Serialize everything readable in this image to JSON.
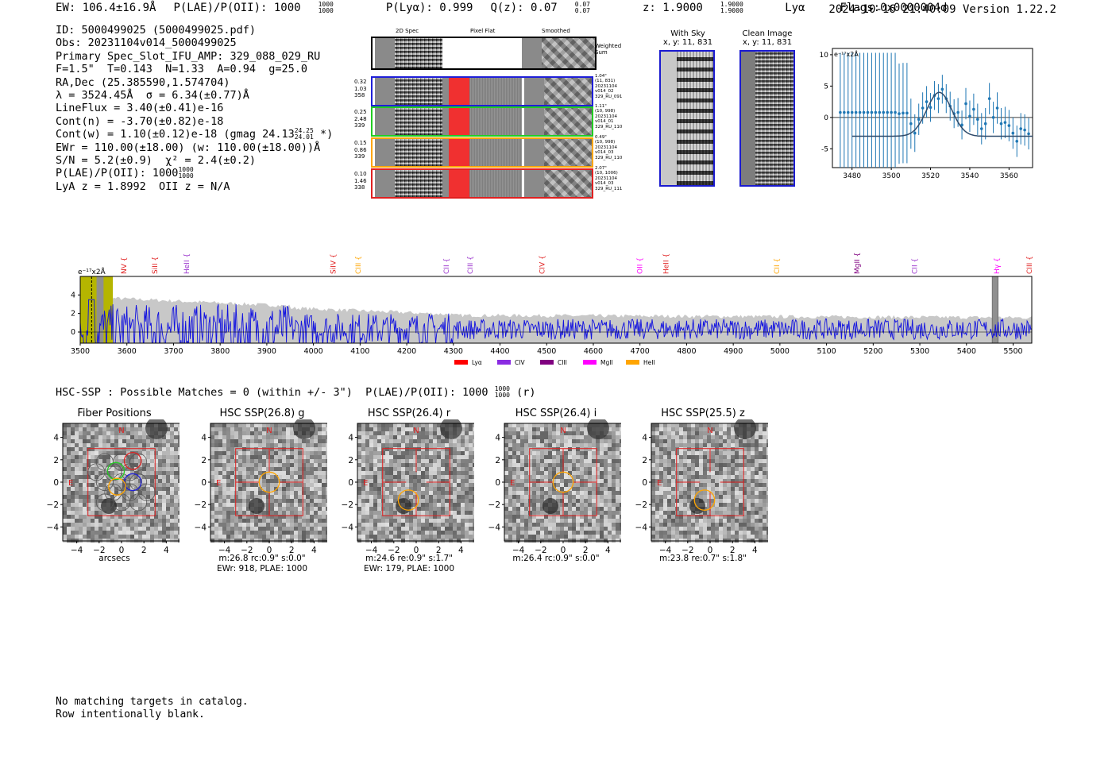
{
  "header": {
    "ew": "EW: 106.4±16.9Å",
    "plae_label": "P(LAE)/P(OII): 1000",
    "plae_hi": "1000",
    "plae_lo": "1000",
    "plya": "P(Lyα): 0.999",
    "qz_label": "Q(z): 0.07",
    "qz_hi": "0.07",
    "qz_lo": "0.07",
    "z_label": "z: 1.9000",
    "z_hi": "1.9000",
    "z_lo": "1.9000",
    "line": "Lyα",
    "flags": "Flags:0x0000004d",
    "timestamp": "2024-10-16 21:40:09",
    "version": "Version 1.22.2"
  },
  "detection": {
    "id": "ID: 5000499025 (5000499025.pdf)",
    "obs": "Obs: 20231104v014_5000499025",
    "primary": "Primary Spec_Slot_IFU_AMP: 329_088_029_RU",
    "params": "F=1.5\"  T=0.143  N=1.33  A=0.94  g=25.0",
    "radec": "RA,Dec (25.385590,1.574704)",
    "lambda": "λ = 3524.45Å  σ = 6.34(±0.77)Å",
    "lineflux": "LineFlux = 3.40(±0.41)e-16",
    "contn": "Cont(n) = -3.70(±0.82)e-18",
    "contw_pre": "Cont(w) = 1.10(±0.12)e-18 (gmag 24.13",
    "contw_hi": "24.25",
    "contw_lo": "24.01",
    "contw_post": "*)",
    "ewr": "EWr = 110.00(±18.00) (w: 110.00(±18.00))Å",
    "sn": "S/N = 5.2(±0.9)  χ² = 2.4(±0.2)",
    "plae_pre": "P(LAE)/P(OII): 1000",
    "plae_hi": "1000",
    "plae_lo": "1000",
    "lya": "LyA z = 1.8992  OII z = N/A"
  },
  "fiber_panel": {
    "col_labels": [
      "2D Spec",
      "Pixel Flat",
      "Smoothed"
    ],
    "weighted_sum": "Weighted\nSum",
    "rows": [
      {
        "left": "0.32\n1.03\n358",
        "right": "1.04\"\n(11, 831)\n20231104\nv014_02\n329_RU_091",
        "color": "#1f1fd8"
      },
      {
        "left": "0.25\n2.48\n339",
        "right": "1.11\"\n(10, 998)\n20231104\nv014_01\n329_RU_110",
        "color": "#22cc22"
      },
      {
        "left": "0.15\n0.86\n339",
        "right": "0.49\"\n(10, 998)\n20231104\nv014_03\n329_RU_110",
        "color": "#ffa500"
      },
      {
        "left": "0.10\n1.46\n338",
        "right": "2.07\"\n(10, 1006)\n20231104\nv014_03\n329_RU_111",
        "color": "#e02020"
      }
    ]
  },
  "sky_panels": [
    {
      "title": "With Sky",
      "subtitle": "x, y: 11, 831"
    },
    {
      "title": "Clean Image",
      "subtitle": "x, y: 11, 831"
    }
  ],
  "chart_data": [
    {
      "type": "scatter",
      "title": "",
      "unit_label": "e⁻¹⁷x2Å",
      "xlim": [
        3470,
        3572
      ],
      "ylim": [
        -8,
        11
      ],
      "xticks": [
        3480,
        3500,
        3520,
        3540,
        3560
      ],
      "yticks": [
        10,
        5,
        0,
        -5
      ],
      "x": [
        3474,
        3476,
        3478,
        3480,
        3482,
        3484,
        3486,
        3488,
        3490,
        3492,
        3494,
        3496,
        3498,
        3500,
        3502,
        3504,
        3506,
        3508,
        3510,
        3512,
        3514,
        3516,
        3518,
        3520,
        3522,
        3524,
        3526,
        3528,
        3530,
        3532,
        3534,
        3536,
        3538,
        3540,
        3542,
        3544,
        3546,
        3548,
        3550,
        3552,
        3554,
        3556,
        3558,
        3560,
        3562,
        3564,
        3566,
        3568,
        3570
      ],
      "y": [
        0.8,
        0.8,
        0.8,
        0.8,
        0.8,
        0.8,
        0.8,
        0.8,
        0.8,
        0.8,
        0.8,
        0.8,
        0.8,
        0.8,
        0.8,
        0.6,
        0.7,
        0.7,
        -1.0,
        -2.5,
        -0.3,
        1.5,
        2.5,
        1.6,
        3.5,
        3.0,
        4.5,
        3.0,
        1.8,
        0.6,
        0.8,
        -1.2,
        2.2,
        0.2,
        1.3,
        -0.3,
        -1.8,
        -1.0,
        3.0,
        0.0,
        1.5,
        -1.0,
        -0.8,
        -1.3,
        -2.5,
        -3.8,
        -1.8,
        -2.0,
        -2.6
      ],
      "err": [
        9.5,
        9.5,
        9.5,
        9.5,
        9.5,
        9.5,
        9.5,
        9.5,
        9.5,
        9.5,
        9.5,
        9.5,
        9.5,
        9.5,
        9.5,
        8,
        8,
        8,
        4,
        3,
        2.5,
        2.5,
        2.5,
        2.3,
        2.3,
        2.3,
        2.3,
        2.3,
        2.3,
        2.3,
        2.3,
        2.3,
        2.5,
        2.5,
        2.5,
        2.5,
        2.5,
        2.5,
        2.5,
        2.5,
        2.5,
        2.5,
        2.5,
        2.5,
        2.5,
        2.5,
        2.5,
        2.5,
        2.5
      ],
      "model_center": 3524.45,
      "model_sigma": 6.34,
      "model_amp": 4.0,
      "model_base": -3.0
    },
    {
      "type": "line",
      "title": "",
      "unit_label": "e⁻¹⁷x2Å",
      "xlim": [
        3500,
        5540
      ],
      "ylim": [
        -1.2,
        6
      ],
      "xticks": [
        3500,
        3600,
        3700,
        3800,
        3900,
        4000,
        4100,
        4200,
        4300,
        4400,
        4500,
        4600,
        4700,
        4800,
        4900,
        5000,
        5100,
        5200,
        5300,
        5400,
        5500
      ],
      "yticks": [
        4,
        2,
        0
      ],
      "series_name": "spectrum",
      "line_markers": [
        {
          "label": "NV",
          "x": 3594,
          "color": "#e02020"
        },
        {
          "label": "SiII",
          "x": 3660,
          "color": "#e02020"
        },
        {
          "label": "HeII",
          "x": 3728,
          "color": "#9932cc"
        },
        {
          "label": "SiIV",
          "x": 4042,
          "color": "#e02020"
        },
        {
          "label": "CIII",
          "x": 4096,
          "color": "#ffa500"
        },
        {
          "label": "CII",
          "x": 4285,
          "color": "#9932cc"
        },
        {
          "label": "CIII",
          "x": 4336,
          "color": "#9932cc"
        },
        {
          "label": "CIV",
          "x": 4490,
          "color": "#e02020"
        },
        {
          "label": "OII",
          "x": 4700,
          "color": "#ff00ff"
        },
        {
          "label": "HeII",
          "x": 4756,
          "color": "#e02020"
        },
        {
          "label": "CII",
          "x": 4993,
          "color": "#ffa500"
        },
        {
          "label": "MgII",
          "x": 5165,
          "color": "#800080"
        },
        {
          "label": "CII",
          "x": 5289,
          "color": "#9932cc"
        },
        {
          "label": "Hγ",
          "x": 5465,
          "color": "#ff00ff"
        },
        {
          "label": "CIII",
          "x": 5535,
          "color": "#e02020"
        }
      ],
      "legend": [
        {
          "label": "Lyα",
          "color": "#ff0000"
        },
        {
          "label": "CIV",
          "color": "#8a2be2"
        },
        {
          "label": "CIII",
          "color": "#800080"
        },
        {
          "label": "MgII",
          "color": "#ff00ff"
        },
        {
          "label": "HeII",
          "color": "#ffa500"
        }
      ]
    }
  ],
  "hsc": {
    "summary_pre": "HSC-SSP : Possible Matches = 0 (within +/- 3\")  P(LAE)/P(OII): 1000",
    "summary_hi": "1000",
    "summary_lo": "1000",
    "summary_post": "(r)",
    "axis_ticks": [
      "4",
      "2",
      "0",
      "−2",
      "−4"
    ],
    "x_ticks": [
      "−4",
      "−2",
      "0",
      "2",
      "4"
    ],
    "compass_n": "N",
    "compass_e": "E",
    "panels": [
      {
        "title": "Fiber Positions",
        "cap1": "arcsecs",
        "cap2": ""
      },
      {
        "title": "HSC SSP(26.8) g",
        "cap1": "m:26.8 rc:0.9\"  s:0.0\"",
        "cap2": "EWr: 918, PLAE: 1000"
      },
      {
        "title": "HSC SSP(26.4) r",
        "cap1": "m:24.6  re:0.9\"  s:1.7\"",
        "cap2": "EWr: 179, PLAE: 1000"
      },
      {
        "title": "HSC SSP(26.4) i",
        "cap1": "m:26.4 rc:0.9\"  s:0.0\"",
        "cap2": ""
      },
      {
        "title": "HSC SSP(25.5) z",
        "cap1": "m:23.8  re:0.7\"  s:1.8\"",
        "cap2": ""
      }
    ]
  },
  "footer": {
    "line1": "No matching targets in catalog.",
    "line2": "Row intentionally blank."
  }
}
